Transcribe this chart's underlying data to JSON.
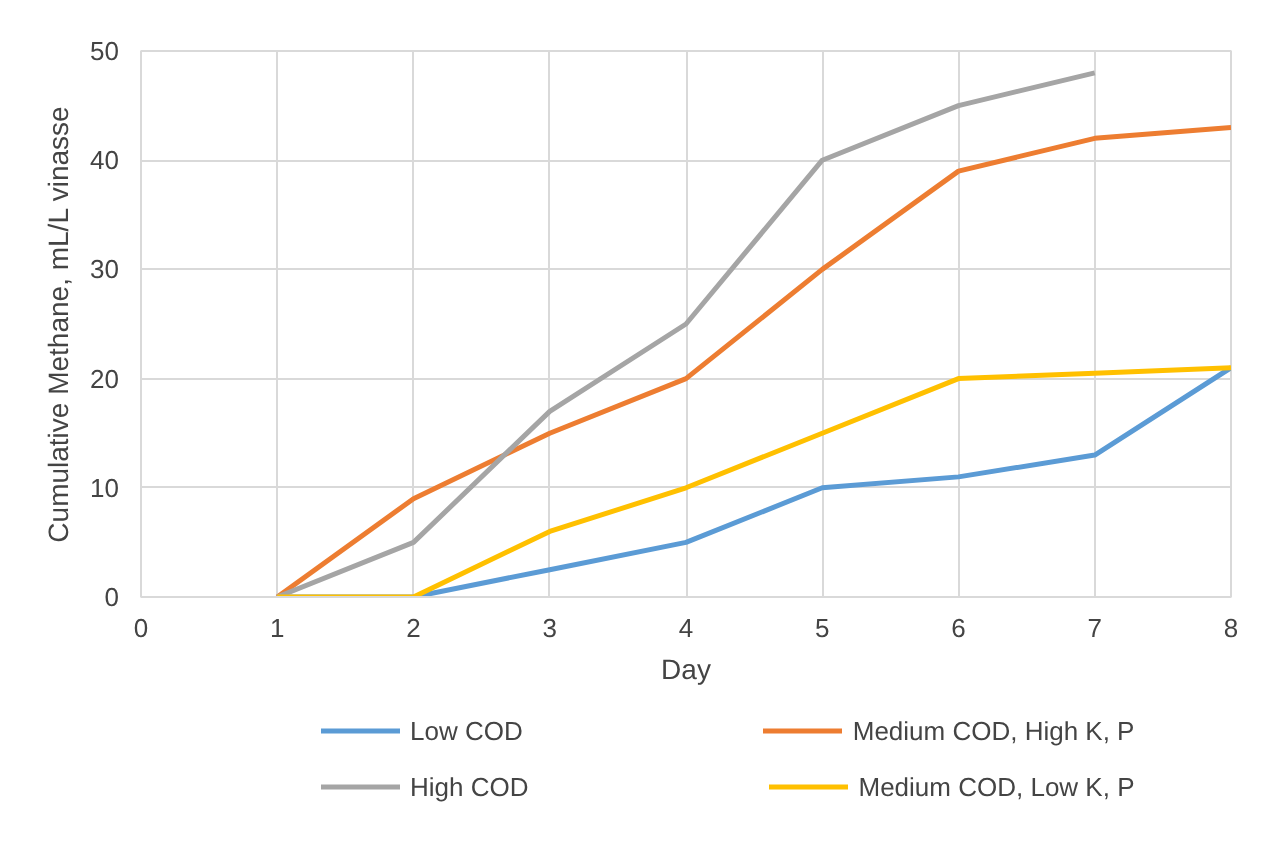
{
  "chart_data": {
    "type": "line",
    "xlabel": "Day",
    "ylabel": "Cumulative Methane, mL/L vinasse",
    "x": [
      1,
      2,
      3,
      4,
      5,
      6,
      7,
      8
    ],
    "series": [
      {
        "name": "Low COD",
        "color": "#5b9bd5",
        "values": [
          0,
          0,
          2.5,
          5,
          10,
          11,
          13,
          21
        ]
      },
      {
        "name": "Medium COD, High K, P",
        "color": "#ed7d31",
        "values": [
          0,
          9,
          15,
          20,
          30,
          39,
          42,
          43
        ]
      },
      {
        "name": "High COD",
        "color": "#a5a5a5",
        "values": [
          0,
          5,
          17,
          25,
          40,
          45,
          48,
          null
        ]
      },
      {
        "name": "Medium COD, Low K, P",
        "color": "#ffc000",
        "values": [
          0,
          0,
          6,
          10,
          15,
          20,
          20.5,
          21
        ]
      }
    ],
    "xlim": [
      0,
      8
    ],
    "ylim": [
      0,
      50
    ],
    "xticks": [
      0,
      1,
      2,
      3,
      4,
      5,
      6,
      7,
      8
    ],
    "yticks": [
      0,
      10,
      20,
      30,
      40,
      50
    ],
    "grid": true,
    "legend": "bottom",
    "marker": "none",
    "line_style": "solid"
  }
}
